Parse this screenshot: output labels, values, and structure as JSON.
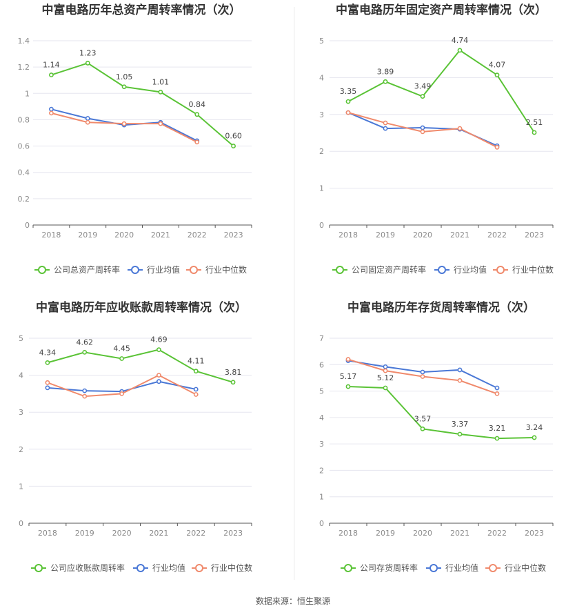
{
  "colors": {
    "company": "#5ac336",
    "industry_avg": "#4a78d6",
    "industry_median": "#f08a6c",
    "grid": "#e6e6ef",
    "text": "#333333"
  },
  "legend": {
    "industry_avg": "行业均值",
    "industry_median": "行业中位数"
  },
  "footer": {
    "source_label": "数据来源：恒生聚源"
  },
  "chart_data": [
    {
      "type": "line",
      "title": "中富电路历年总资产周转率情况（次）",
      "categories": [
        "2018",
        "2019",
        "2020",
        "2021",
        "2022",
        "2023"
      ],
      "ylim": [
        0,
        1.4
      ],
      "yticks": [
        "0",
        "0.2",
        "0.4",
        "0.6",
        "0.8",
        "1",
        "1.2",
        "1.4"
      ],
      "series": [
        {
          "name": "公司总资产周转率",
          "values": [
            1.14,
            1.23,
            1.05,
            1.01,
            0.84,
            0.6
          ],
          "labels": [
            "1.14",
            "1.23",
            "1.05",
            "1.01",
            "0.84",
            "0.60"
          ]
        },
        {
          "name": "行业均值",
          "values": [
            0.88,
            0.81,
            0.76,
            0.78,
            0.64,
            null
          ]
        },
        {
          "name": "行业中位数",
          "values": [
            0.85,
            0.78,
            0.77,
            0.77,
            0.63,
            null
          ]
        }
      ]
    },
    {
      "type": "line",
      "title": "中富电路历年固定资产周转率情况（次）",
      "categories": [
        "2018",
        "2019",
        "2020",
        "2021",
        "2022",
        "2023"
      ],
      "ylim": [
        0,
        5
      ],
      "yticks": [
        "0",
        "1",
        "2",
        "3",
        "4",
        "5"
      ],
      "series": [
        {
          "name": "公司固定资产周转率",
          "values": [
            3.35,
            3.89,
            3.49,
            4.74,
            4.07,
            2.51
          ],
          "labels": [
            "3.35",
            "3.89",
            "3.49",
            "4.74",
            "4.07",
            "2.51"
          ]
        },
        {
          "name": "行业均值",
          "values": [
            3.05,
            2.62,
            2.64,
            2.6,
            2.15,
            null
          ]
        },
        {
          "name": "行业中位数",
          "values": [
            3.05,
            2.77,
            2.53,
            2.62,
            2.11,
            null
          ]
        }
      ]
    },
    {
      "type": "line",
      "title": "中富电路历年应收账款周转率情况（次）",
      "categories": [
        "2018",
        "2019",
        "2020",
        "2021",
        "2022",
        "2023"
      ],
      "ylim": [
        0,
        5
      ],
      "yticks": [
        "0",
        "1",
        "2",
        "3",
        "4",
        "5"
      ],
      "series": [
        {
          "name": "公司应收账款周转率",
          "values": [
            4.34,
            4.62,
            4.45,
            4.69,
            4.11,
            3.81
          ],
          "labels": [
            "4.34",
            "4.62",
            "4.45",
            "4.69",
            "4.11",
            "3.81"
          ]
        },
        {
          "name": "行业均值",
          "values": [
            3.66,
            3.58,
            3.56,
            3.83,
            3.62,
            null
          ]
        },
        {
          "name": "行业中位数",
          "values": [
            3.8,
            3.43,
            3.5,
            4.0,
            3.48,
            null
          ]
        }
      ]
    },
    {
      "type": "line",
      "title": "中富电路历年存货周转率情况（次）",
      "categories": [
        "2018",
        "2019",
        "2020",
        "2021",
        "2022",
        "2023"
      ],
      "ylim": [
        0,
        7
      ],
      "yticks": [
        "0",
        "1",
        "2",
        "3",
        "4",
        "5",
        "6",
        "7"
      ],
      "series": [
        {
          "name": "公司存货周转率",
          "values": [
            5.17,
            5.12,
            3.57,
            3.37,
            3.21,
            3.24
          ],
          "labels": [
            "5.17",
            "5.12",
            "3.57",
            "3.37",
            "3.21",
            "3.24"
          ]
        },
        {
          "name": "行业均值",
          "values": [
            6.15,
            5.92,
            5.72,
            5.8,
            5.12,
            null
          ]
        },
        {
          "name": "行业中位数",
          "values": [
            6.2,
            5.77,
            5.55,
            5.4,
            4.9,
            null
          ]
        }
      ]
    }
  ]
}
